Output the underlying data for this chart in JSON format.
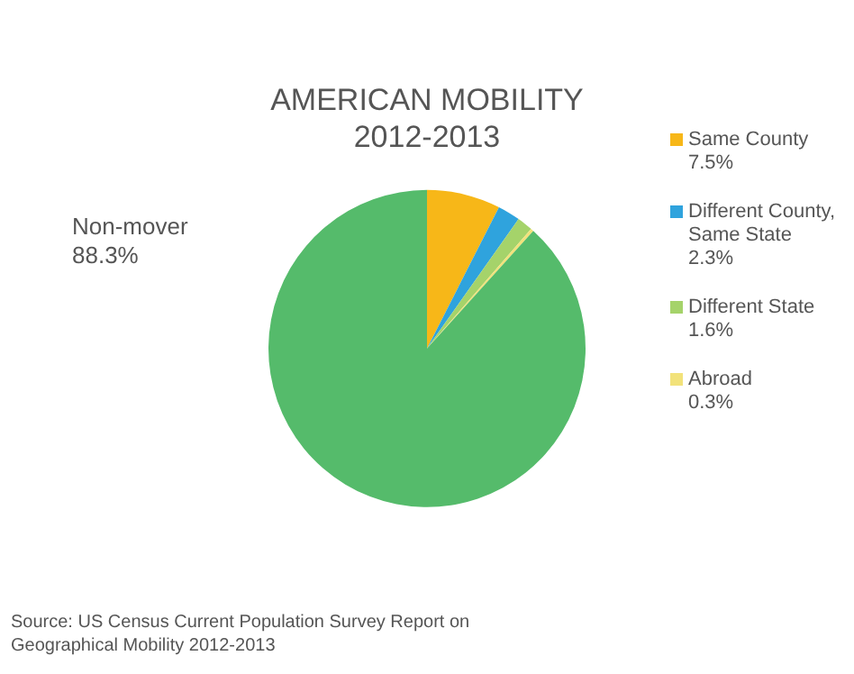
{
  "chart_data": {
    "type": "pie",
    "title": "AMERICAN MOBILITY",
    "subtitle": "2012-2013",
    "categories": [
      "Same County",
      "Different County, Same State",
      "Different State",
      "Abroad",
      "Non-mover"
    ],
    "values": [
      7.5,
      2.3,
      1.6,
      0.3,
      88.3
    ],
    "value_labels": [
      "7.5%",
      "2.3%",
      "1.6%",
      "0.3%",
      "88.3%"
    ],
    "colors": [
      "#f7b718",
      "#2fa3dd",
      "#a5d36a",
      "#f2e27a",
      "#55bb6b"
    ],
    "legend": "right",
    "annotations": [
      "Source: US Census Current Population Survey Report on Geographical Mobility 2012-2013"
    ]
  }
}
